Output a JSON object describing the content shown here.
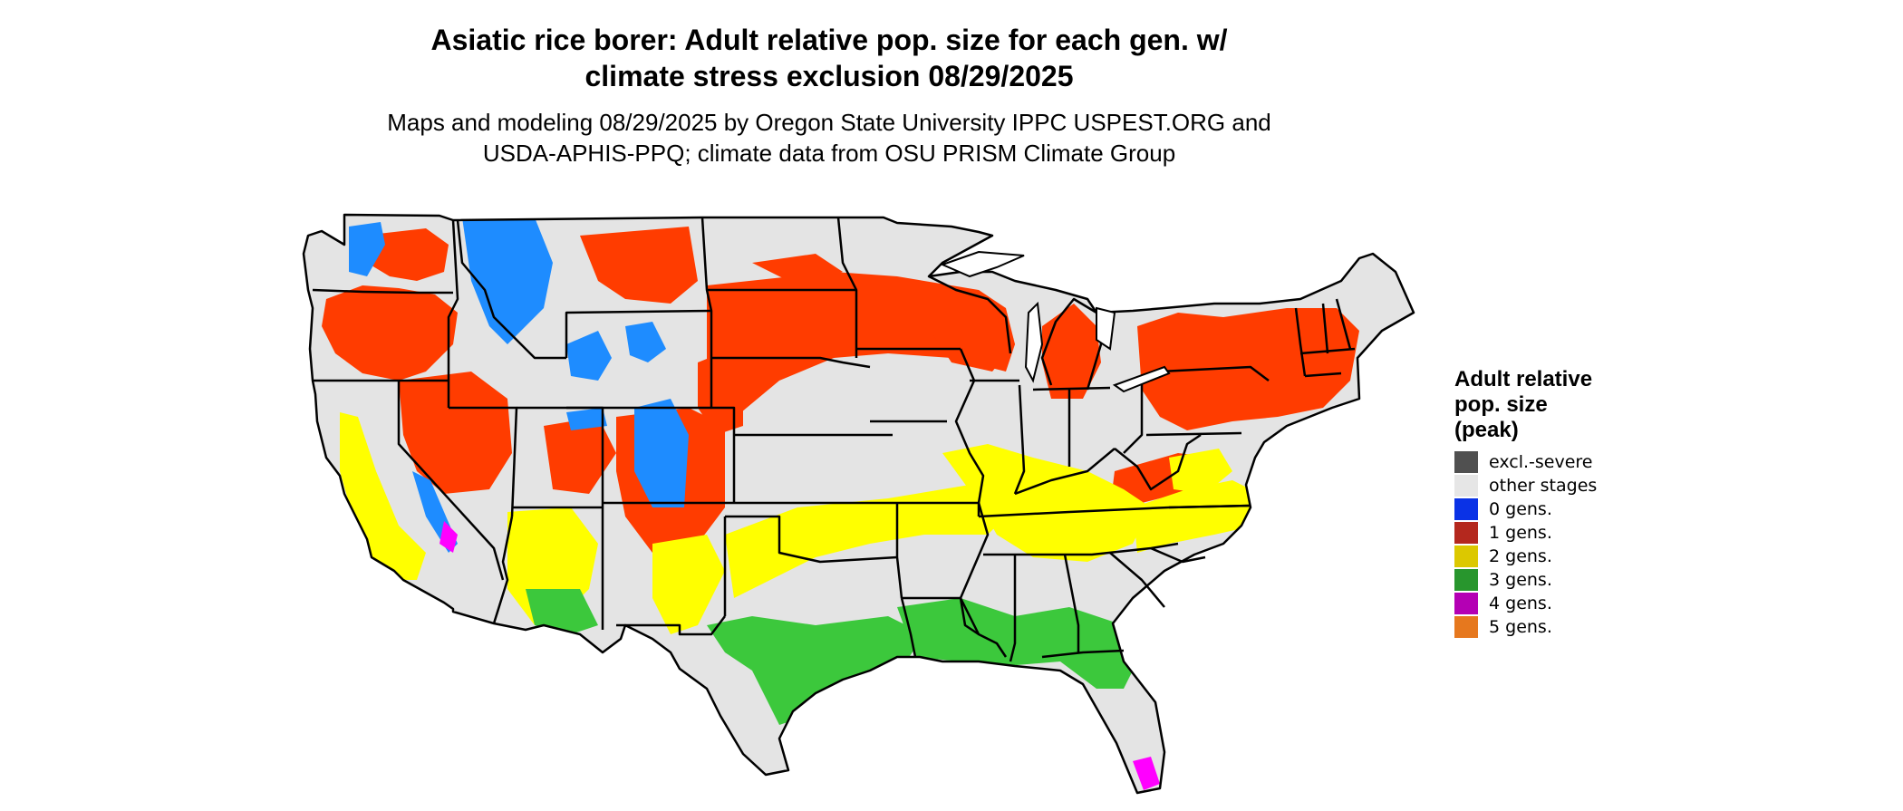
{
  "title": {
    "line1": "Asiatic rice borer: Adult relative pop. size for each gen. w/",
    "line2": "climate stress exclusion 08/29/2025"
  },
  "subtitle": {
    "line1": "Maps and modeling 08/29/2025 by Oregon State University IPPC USPEST.ORG and",
    "line2": "USDA-APHIS-PPQ; climate data from OSU PRISM Climate Group"
  },
  "legend": {
    "title_lines": [
      "Adult relative",
      "pop. size",
      "(peak)"
    ],
    "items": [
      {
        "label": "excl.-severe",
        "color": "#505050"
      },
      {
        "label": "other stages",
        "color": "#e6e6e6"
      },
      {
        "label": "0 gens.",
        "color": "#0a32e6"
      },
      {
        "label": "1 gens.",
        "color": "#b4281e"
      },
      {
        "label": "2 gens.",
        "color": "#dcc800"
      },
      {
        "label": "3 gens.",
        "color": "#28962d"
      },
      {
        "label": "4 gens.",
        "color": "#b400b4"
      },
      {
        "label": "5 gens.",
        "color": "#e6781e"
      }
    ]
  },
  "map_colors": {
    "background_state": "#e4e4e4",
    "one_gen_fill": "#ff3c00",
    "zero_gen_fill": "#1e8cff",
    "two_gen_fill": "#ffff00",
    "three_gen_fill": "#3cc83c",
    "four_gen_fill": "#ff00ff",
    "borders": "#000000"
  }
}
